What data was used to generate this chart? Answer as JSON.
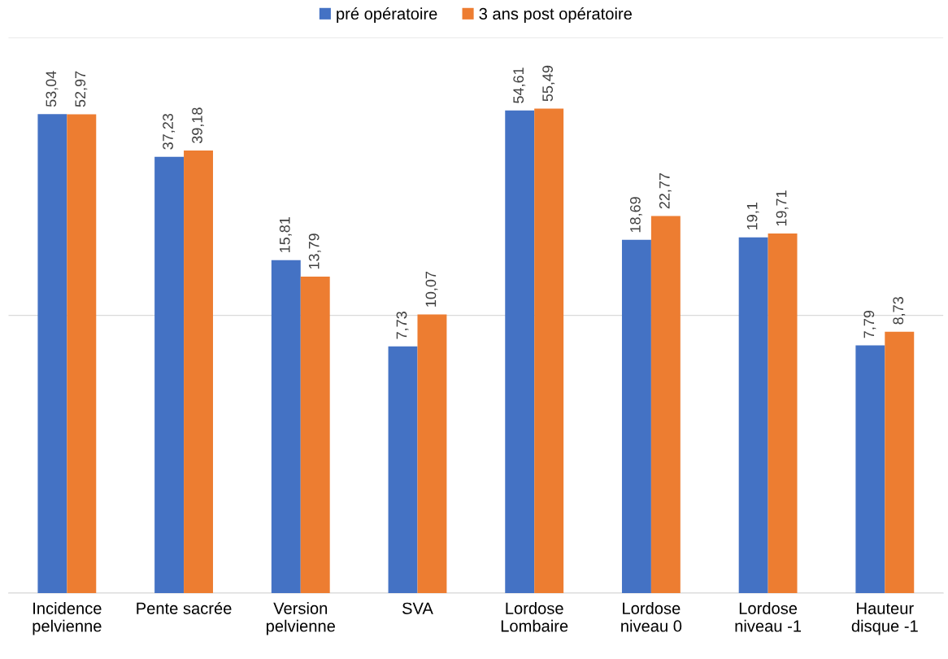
{
  "chart_data": {
    "type": "bar",
    "categories": [
      "Incidence\npelvienne",
      "Pente sacrée",
      "Version\npelvienne",
      "SVA",
      "Lordose\nLombaire",
      "Lordose\nniveau 0",
      "Lordose\nniveau -1",
      "Hauteur\ndisque -1"
    ],
    "series": [
      {
        "name": "pré opératoire",
        "color": "#4472c4",
        "values": [
          53.04,
          37.23,
          15.81,
          7.73,
          54.61,
          18.69,
          19.1,
          7.79
        ],
        "value_labels": [
          "53,04",
          "37,23",
          "15,81",
          "7,73",
          "54,61",
          "18,69",
          "19,1",
          "7,79"
        ]
      },
      {
        "name": "3 ans post opératoire",
        "color": "#ed7d31",
        "values": [
          52.97,
          39.18,
          13.79,
          10.07,
          55.49,
          22.77,
          19.71,
          8.73
        ],
        "value_labels": [
          "52,97",
          "39,18",
          "13,79",
          "10,07",
          "55,49",
          "22,77",
          "19,71",
          "8,73"
        ]
      }
    ],
    "log": true,
    "ylim": [
      1,
      100
    ],
    "yticks": [
      {
        "value": 1,
        "label": null
      },
      {
        "value": 10,
        "label": null
      },
      {
        "value": 100,
        "label": null
      }
    ],
    "tick_labels": "x",
    "grid": "y",
    "legend": "top"
  }
}
